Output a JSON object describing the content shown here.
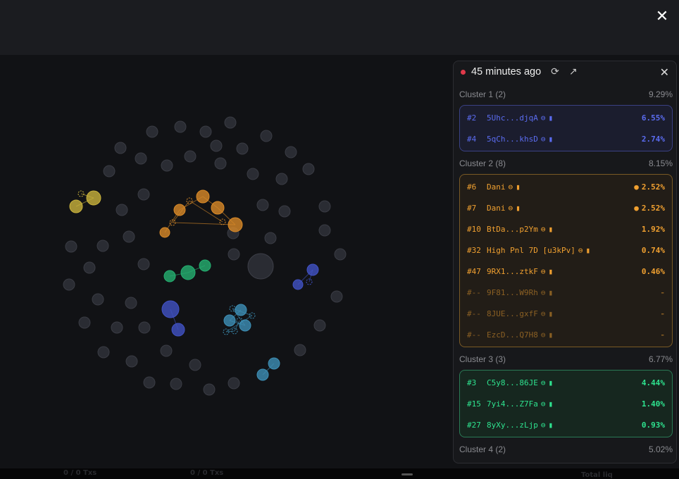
{
  "header": {
    "close_icon": "close-icon"
  },
  "panel": {
    "time": "45 minutes ago",
    "icons": [
      "refresh-icon",
      "external-link-icon",
      "close-icon"
    ],
    "clusters": [
      {
        "name": "Cluster 1 (2)",
        "pct": "9.29%",
        "color": "#5b6cf0",
        "bg": "#1b1d2e",
        "border": "#3a4184",
        "rows": [
          {
            "rank": "#2",
            "addr": "5Uhc...djqA",
            "pct": "6.55%"
          },
          {
            "rank": "#4",
            "addr": "5qCh...khsD",
            "pct": "2.74%"
          }
        ]
      },
      {
        "name": "Cluster 2 (8)",
        "pct": "8.15%",
        "color": "#f0a030",
        "bg": "#221d17",
        "border": "#7a5a25",
        "rows": [
          {
            "rank": "#6",
            "addr": "Dani",
            "pct": "2.52%",
            "bulb": true
          },
          {
            "rank": "#7",
            "addr": "Dani",
            "pct": "2.52%",
            "bulb": true
          },
          {
            "rank": "#10",
            "addr": "BtDa...p2Ym",
            "pct": "1.92%"
          },
          {
            "rank": "#32",
            "addr": "High Pnl 7D [u3kPv]",
            "pct": "0.74%"
          },
          {
            "rank": "#47",
            "addr": "9RX1...ztkF",
            "pct": "0.46%"
          },
          {
            "rank": "#--",
            "addr": "9F81...W9Rh",
            "pct": "-",
            "dim": true
          },
          {
            "rank": "#--",
            "addr": "8JUE...gxfF",
            "pct": "-",
            "dim": true
          },
          {
            "rank": "#--",
            "addr": "EzcD...Q7H8",
            "pct": "-",
            "dim": true
          }
        ]
      },
      {
        "name": "Cluster 3 (3)",
        "pct": "6.77%",
        "color": "#2ee38f",
        "bg": "#16271f",
        "border": "#2a7a55",
        "rows": [
          {
            "rank": "#3",
            "addr": "C5y8...86JE",
            "pct": "4.44%"
          },
          {
            "rank": "#15",
            "addr": "7yi4...Z7Fa",
            "pct": "1.40%"
          },
          {
            "rank": "#27",
            "addr": "8yXy...zLjp",
            "pct": "0.93%"
          }
        ]
      },
      {
        "name": "Cluster 4 (2)",
        "pct": "5.02%"
      }
    ]
  },
  "bottom": {
    "txs1": "0 / 0 Txs",
    "txs2": "0 / 0 Txs",
    "total": "Total liq"
  }
}
